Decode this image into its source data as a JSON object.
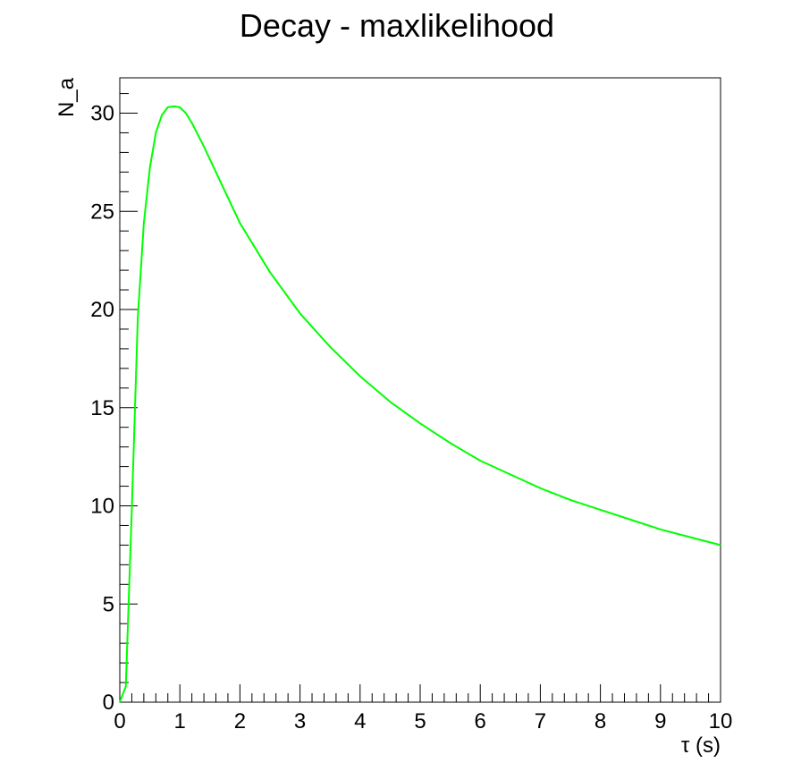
{
  "chart_data": {
    "type": "line",
    "title": "Decay - maxlikelihood",
    "xlabel": "τ (s)",
    "ylabel": "N_a",
    "xlim": [
      0,
      10
    ],
    "ylim": [
      0,
      31.8
    ],
    "x_ticks": [
      "0",
      "1",
      "2",
      "3",
      "4",
      "5",
      "6",
      "7",
      "8",
      "9",
      "10"
    ],
    "y_ticks": [
      "0",
      "5",
      "10",
      "15",
      "20",
      "25",
      "30"
    ],
    "grid": false,
    "legend": "none",
    "series": [
      {
        "color": "#00ff00",
        "x": [
          0.0,
          0.1,
          0.2,
          0.3,
          0.4,
          0.5,
          0.6,
          0.7,
          0.8,
          0.9,
          1.0,
          1.1,
          1.2,
          1.4,
          1.6,
          1.8,
          2.0,
          2.5,
          3.0,
          3.5,
          4.0,
          4.5,
          5.0,
          5.5,
          6.0,
          6.5,
          7.0,
          7.5,
          8.0,
          8.5,
          9.0,
          9.5,
          10.0
        ],
        "y": [
          0.0,
          0.8,
          9.8,
          19.6,
          24.4,
          27.2,
          29.0,
          29.9,
          30.3,
          30.35,
          30.3,
          30.0,
          29.5,
          28.3,
          27.0,
          25.7,
          24.4,
          21.9,
          19.8,
          18.1,
          16.6,
          15.3,
          14.2,
          13.2,
          12.3,
          11.6,
          10.9,
          10.3,
          9.8,
          9.3,
          8.8,
          8.4,
          8.0
        ]
      }
    ]
  }
}
